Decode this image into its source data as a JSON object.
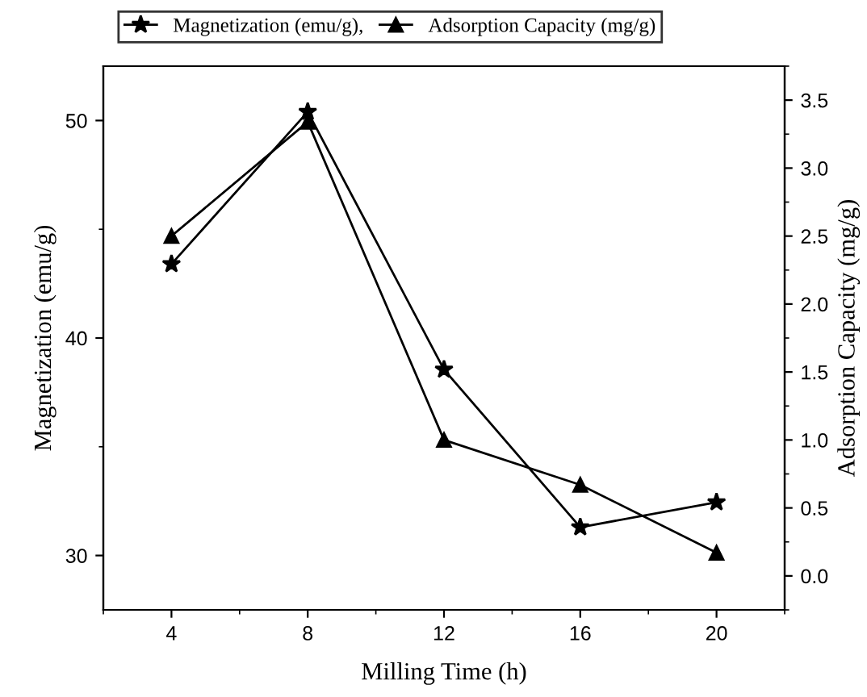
{
  "chart_data": {
    "type": "line",
    "xlabel": "Milling Time (h)",
    "ylabel": "Magnetization (emu/g)",
    "y2label": "Adsorption Capacity (mg/g)",
    "x": [
      4,
      8,
      12,
      16,
      20
    ],
    "series": [
      {
        "name": "Magnetization (emu/g),",
        "color": "#000000",
        "marker": "star",
        "values": [
          43.4,
          50.4,
          38.55,
          31.3,
          32.45
        ]
      },
      {
        "name": "Adsorption Capacity (mg/g)",
        "color": "#000000",
        "marker": "triangle",
        "axis": "y2",
        "values": [
          2.5,
          3.34,
          1.0,
          0.67,
          0.17
        ]
      }
    ],
    "xlim": [
      2,
      22
    ],
    "xticks": [
      4,
      8,
      12,
      16,
      20
    ],
    "ylim": [
      27.5,
      52.5
    ],
    "yticks": [
      30,
      40,
      50
    ],
    "y2lim": [
      -0.25,
      3.75
    ],
    "y2ticks": [
      {
        "value": 0,
        "label": "0.0"
      },
      {
        "value": 0.5,
        "label": "0.5"
      },
      {
        "value": 1,
        "label": "1.0"
      },
      {
        "value": 1.5,
        "label": "1.5"
      },
      {
        "value": 2,
        "label": "2.0"
      },
      {
        "value": 2.5,
        "label": "2.5"
      },
      {
        "value": 3,
        "label": "3.0"
      },
      {
        "value": 3.5,
        "label": "3.5"
      }
    ],
    "line_style": "solid",
    "grid": false,
    "legend": "top"
  }
}
